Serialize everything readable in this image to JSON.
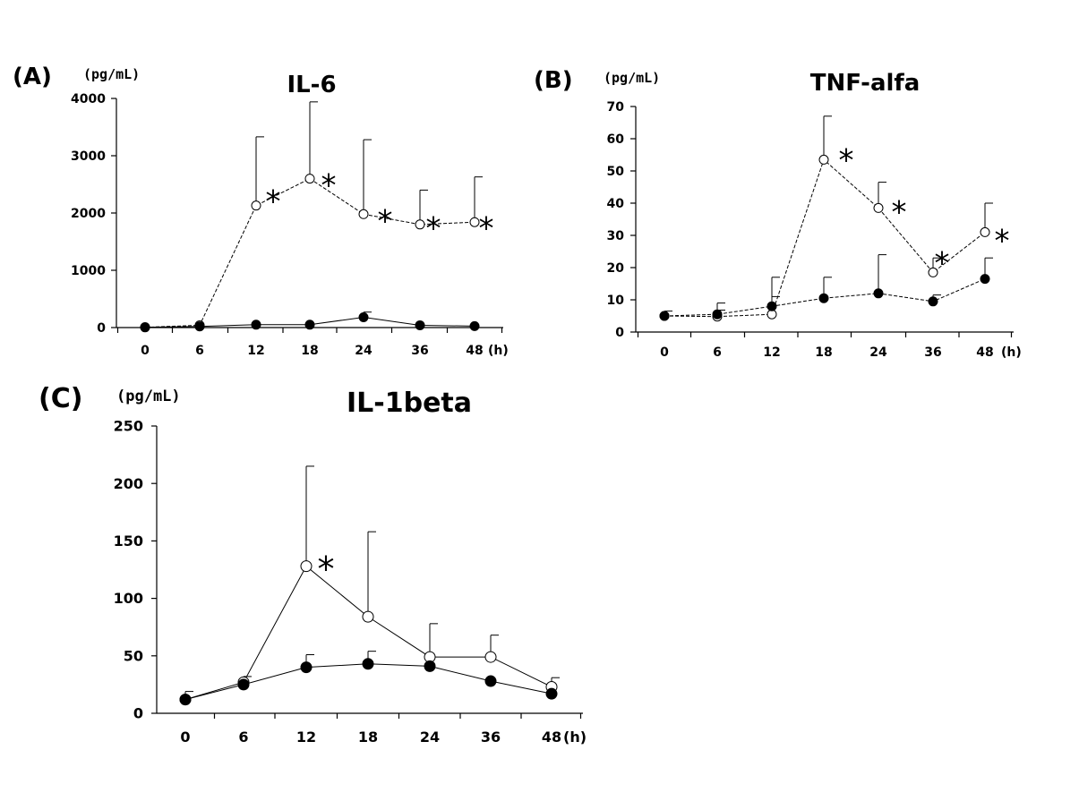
{
  "chart_data": [
    {
      "id": "A",
      "type": "line",
      "panel_label": "(A)",
      "title": "IL-6",
      "ylabel": "(pg/mL)",
      "xunit": "(h)",
      "categories": [
        "0",
        "6",
        "12",
        "18",
        "24",
        "36",
        "48"
      ],
      "ylim": [
        0,
        4000
      ],
      "yticks": [
        0,
        1000,
        2000,
        3000,
        4000
      ],
      "series": [
        {
          "marker": "open",
          "line": "dashed",
          "values": [
            5,
            40,
            2130,
            2600,
            1980,
            1800,
            1840
          ],
          "err": [
            0,
            0,
            1200,
            1340,
            1300,
            600,
            790
          ]
        },
        {
          "marker": "filled",
          "line": "solid",
          "values": [
            5,
            20,
            50,
            50,
            180,
            40,
            25
          ],
          "err": [
            0,
            0,
            0,
            0,
            90,
            0,
            0
          ]
        }
      ],
      "significant": [
        "",
        "",
        "*",
        "*",
        "*",
        "*",
        "*"
      ]
    },
    {
      "id": "B",
      "type": "line",
      "panel_label": "(B)",
      "title": "TNF-alfa",
      "ylabel": "(pg/mL)",
      "xunit": "(h)",
      "categories": [
        "0",
        "6",
        "12",
        "18",
        "24",
        "36",
        "48"
      ],
      "ylim": [
        0,
        70
      ],
      "yticks": [
        0,
        10,
        20,
        30,
        40,
        50,
        60,
        70
      ],
      "series": [
        {
          "marker": "open",
          "line": "dashed",
          "values": [
            5,
            4.8,
            5.5,
            53.5,
            38.5,
            18.5,
            31
          ],
          "err": [
            1.5,
            2,
            5.5,
            13.5,
            8,
            4.5,
            9
          ]
        },
        {
          "marker": "filled",
          "line": "dashed",
          "values": [
            5,
            5.5,
            8,
            10.5,
            12,
            9.5,
            16.5
          ],
          "err": [
            0,
            3.5,
            9,
            6.5,
            12,
            2,
            6.5
          ]
        }
      ],
      "significant": [
        "",
        "",
        "",
        "*",
        "*",
        "*",
        "*"
      ]
    },
    {
      "id": "C",
      "type": "line",
      "panel_label": "(C)",
      "title": "IL-1beta",
      "ylabel": "(pg/mL)",
      "xunit": "(h)",
      "categories": [
        "0",
        "6",
        "12",
        "18",
        "24",
        "36",
        "48"
      ],
      "ylim": [
        0,
        250
      ],
      "yticks": [
        0,
        50,
        100,
        150,
        200,
        250
      ],
      "series": [
        {
          "marker": "open",
          "line": "solid",
          "values": [
            12,
            27,
            128,
            84,
            49,
            49,
            23
          ],
          "err": [
            7,
            5,
            87,
            74,
            29,
            19,
            8
          ]
        },
        {
          "marker": "filled",
          "line": "solid",
          "values": [
            12,
            25,
            40,
            43,
            41,
            28,
            17
          ],
          "err": [
            0,
            0,
            11,
            11,
            0,
            0,
            0
          ]
        }
      ],
      "significant": [
        "",
        "",
        "*",
        "",
        "",
        "",
        ""
      ]
    }
  ]
}
